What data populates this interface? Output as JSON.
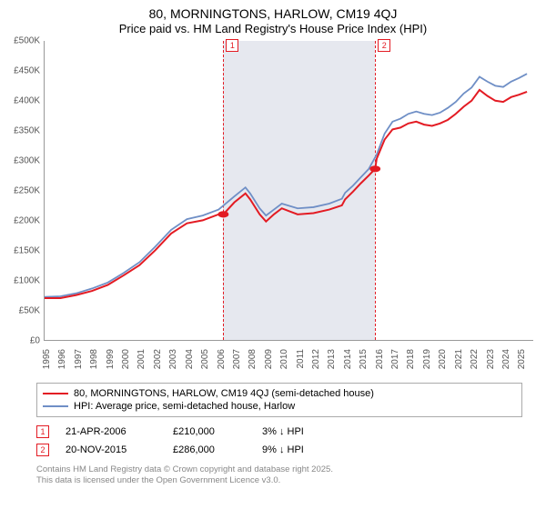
{
  "title": {
    "line1": "80, MORNINGTONS, HARLOW, CM19 4QJ",
    "line2": "Price paid vs. HM Land Registry's House Price Index (HPI)"
  },
  "chart": {
    "type": "line",
    "background_color": "#ffffff",
    "band_color": "#e6e8ef",
    "axis_color": "#999999",
    "tick_font_size": 10,
    "x": {
      "min": 1995,
      "max": 2025.9,
      "ticks": [
        1995,
        1996,
        1997,
        1998,
        1999,
        2000,
        2001,
        2002,
        2003,
        2004,
        2005,
        2006,
        2007,
        2008,
        2009,
        2010,
        2011,
        2012,
        2013,
        2014,
        2015,
        2016,
        2017,
        2018,
        2019,
        2020,
        2021,
        2022,
        2023,
        2024,
        2025
      ]
    },
    "y": {
      "min": 0,
      "max": 500000,
      "ticks": [
        0,
        50000,
        100000,
        150000,
        200000,
        250000,
        300000,
        350000,
        400000,
        450000,
        500000
      ],
      "tick_labels": [
        "£0",
        "£50K",
        "£100K",
        "£150K",
        "£200K",
        "£250K",
        "£300K",
        "£350K",
        "£400K",
        "£450K",
        "£500K"
      ]
    },
    "band": {
      "from": 2006.3,
      "to": 2015.9
    },
    "markers": [
      {
        "id": "1",
        "x": 2006.3
      },
      {
        "id": "2",
        "x": 2015.9
      }
    ],
    "series": [
      {
        "name": "price_paid",
        "label": "80, MORNINGTONS, HARLOW, CM19 4QJ (semi-detached house)",
        "color": "#e31b23",
        "width": 2,
        "points": [
          [
            1995,
            70000
          ],
          [
            1996,
            70000
          ],
          [
            1997,
            75000
          ],
          [
            1998,
            82000
          ],
          [
            1999,
            92000
          ],
          [
            2000,
            108000
          ],
          [
            2001,
            125000
          ],
          [
            2002,
            150000
          ],
          [
            2003,
            178000
          ],
          [
            2004,
            195000
          ],
          [
            2005,
            200000
          ],
          [
            2006,
            210000
          ],
          [
            2006.3,
            210000
          ],
          [
            2007,
            230000
          ],
          [
            2007.7,
            245000
          ],
          [
            2008,
            235000
          ],
          [
            2008.6,
            210000
          ],
          [
            2009,
            198000
          ],
          [
            2009.5,
            210000
          ],
          [
            2010,
            220000
          ],
          [
            2010.5,
            215000
          ],
          [
            2011,
            210000
          ],
          [
            2012,
            212000
          ],
          [
            2013,
            218000
          ],
          [
            2013.8,
            225000
          ],
          [
            2014,
            235000
          ],
          [
            2014.5,
            248000
          ],
          [
            2015,
            262000
          ],
          [
            2015.5,
            275000
          ],
          [
            2015.9,
            286000
          ],
          [
            2016,
            303000
          ],
          [
            2016.5,
            335000
          ],
          [
            2017,
            352000
          ],
          [
            2017.5,
            355000
          ],
          [
            2018,
            362000
          ],
          [
            2018.5,
            365000
          ],
          [
            2019,
            360000
          ],
          [
            2019.5,
            358000
          ],
          [
            2020,
            362000
          ],
          [
            2020.5,
            368000
          ],
          [
            2021,
            378000
          ],
          [
            2021.5,
            390000
          ],
          [
            2022,
            400000
          ],
          [
            2022.5,
            418000
          ],
          [
            2023,
            408000
          ],
          [
            2023.5,
            400000
          ],
          [
            2024,
            398000
          ],
          [
            2024.5,
            406000
          ],
          [
            2025,
            410000
          ],
          [
            2025.5,
            415000
          ]
        ],
        "dots": [
          [
            2006.3,
            210000
          ],
          [
            2015.9,
            286000
          ]
        ]
      },
      {
        "name": "hpi",
        "label": "HPI: Average price, semi-detached house, Harlow",
        "color": "#6f8fc6",
        "width": 1.8,
        "points": [
          [
            1995,
            72000
          ],
          [
            1996,
            73000
          ],
          [
            1997,
            78000
          ],
          [
            1998,
            86000
          ],
          [
            1999,
            96000
          ],
          [
            2000,
            112000
          ],
          [
            2001,
            130000
          ],
          [
            2002,
            156000
          ],
          [
            2003,
            184000
          ],
          [
            2004,
            202000
          ],
          [
            2005,
            208000
          ],
          [
            2006,
            218000
          ],
          [
            2007,
            240000
          ],
          [
            2007.7,
            255000
          ],
          [
            2008,
            245000
          ],
          [
            2008.6,
            220000
          ],
          [
            2009,
            208000
          ],
          [
            2009.5,
            218000
          ],
          [
            2010,
            228000
          ],
          [
            2010.5,
            224000
          ],
          [
            2011,
            220000
          ],
          [
            2012,
            222000
          ],
          [
            2013,
            228000
          ],
          [
            2013.8,
            236000
          ],
          [
            2014,
            246000
          ],
          [
            2014.5,
            258000
          ],
          [
            2015,
            272000
          ],
          [
            2015.5,
            286000
          ],
          [
            2016,
            310000
          ],
          [
            2016.5,
            345000
          ],
          [
            2017,
            365000
          ],
          [
            2017.5,
            370000
          ],
          [
            2018,
            378000
          ],
          [
            2018.5,
            382000
          ],
          [
            2019,
            378000
          ],
          [
            2019.5,
            376000
          ],
          [
            2020,
            380000
          ],
          [
            2020.5,
            388000
          ],
          [
            2021,
            398000
          ],
          [
            2021.5,
            412000
          ],
          [
            2022,
            422000
          ],
          [
            2022.5,
            440000
          ],
          [
            2023,
            432000
          ],
          [
            2023.5,
            425000
          ],
          [
            2024,
            423000
          ],
          [
            2024.5,
            432000
          ],
          [
            2025,
            438000
          ],
          [
            2025.5,
            445000
          ]
        ]
      }
    ]
  },
  "legend": {
    "rows": [
      {
        "color": "#e31b23",
        "label": "80, MORNINGTONS, HARLOW, CM19 4QJ (semi-detached house)"
      },
      {
        "color": "#6f8fc6",
        "label": "HPI: Average price, semi-detached house, Harlow"
      }
    ]
  },
  "transactions": [
    {
      "id": "1",
      "date": "21-APR-2006",
      "price": "£210,000",
      "pct": "3%",
      "arrow": "↓",
      "suffix": "HPI"
    },
    {
      "id": "2",
      "date": "20-NOV-2015",
      "price": "£286,000",
      "pct": "9%",
      "arrow": "↓",
      "suffix": "HPI"
    }
  ],
  "footer": {
    "line1": "Contains HM Land Registry data © Crown copyright and database right 2025.",
    "line2": "This data is licensed under the Open Government Licence v3.0."
  }
}
